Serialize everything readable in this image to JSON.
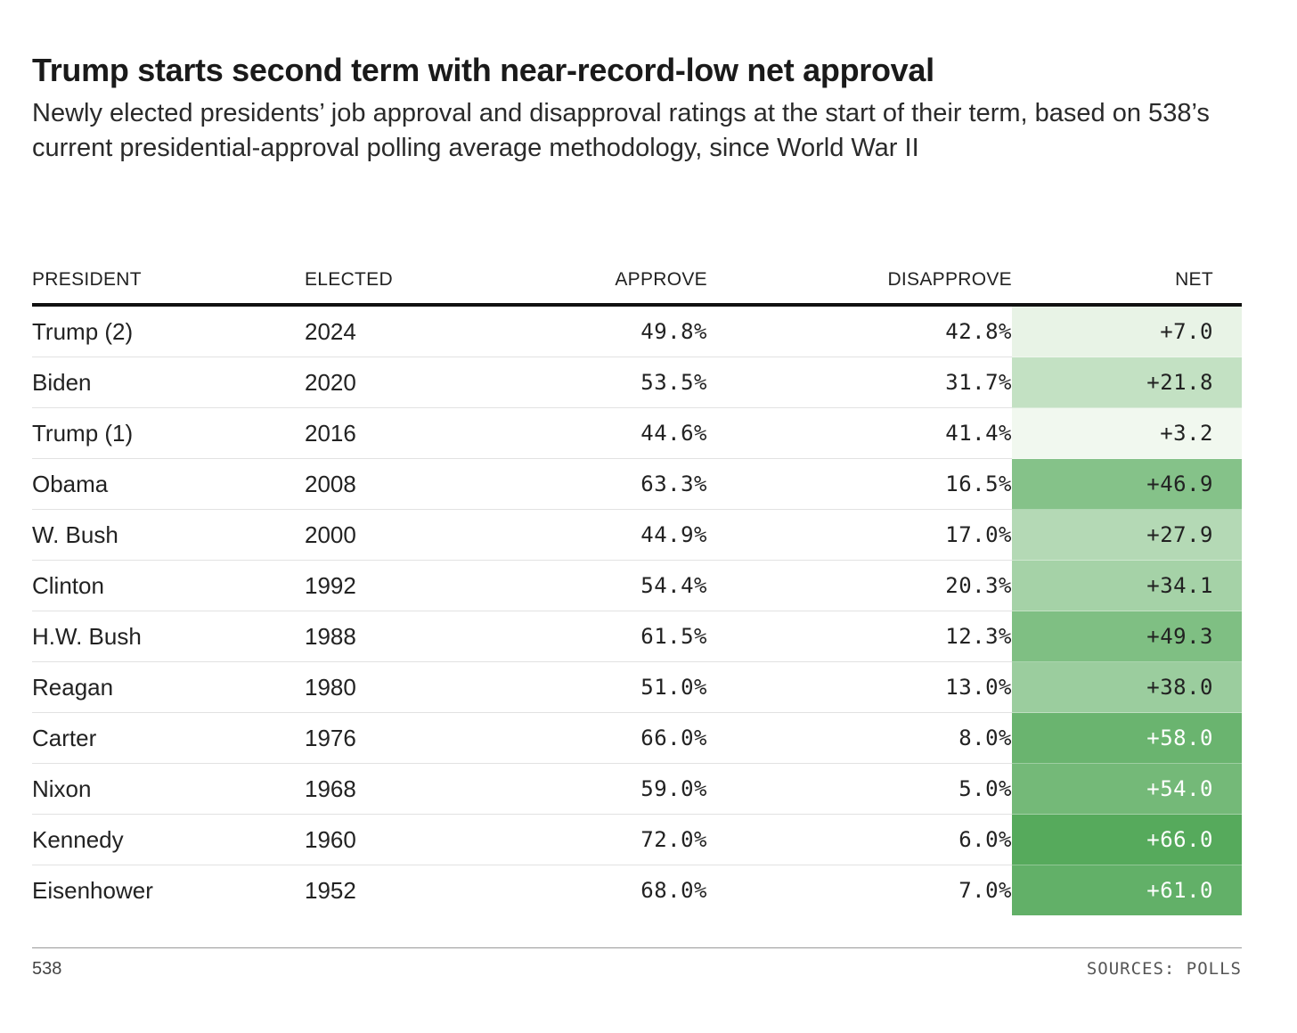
{
  "title": "Trump starts second term with near-record-low net approval",
  "subtitle": "Newly elected presidents’ job approval and disapproval ratings at the start of their term, based on 538’s current presidential-approval polling average methodology, since World War II",
  "chart_data": {
    "type": "table",
    "columns": [
      "PRESIDENT",
      "ELECTED",
      "APPROVE",
      "DISAPPROVE",
      "NET"
    ],
    "rows": [
      {
        "president": "Trump (2)",
        "elected": "2024",
        "approve": "49.8%",
        "disapprove": "42.8%",
        "net": "+7.0",
        "net_value": 7.0
      },
      {
        "president": "Biden",
        "elected": "2020",
        "approve": "53.5%",
        "disapprove": "31.7%",
        "net": "+21.8",
        "net_value": 21.8
      },
      {
        "president": "Trump (1)",
        "elected": "2016",
        "approve": "44.6%",
        "disapprove": "41.4%",
        "net": "+3.2",
        "net_value": 3.2
      },
      {
        "president": "Obama",
        "elected": "2008",
        "approve": "63.3%",
        "disapprove": "16.5%",
        "net": "+46.9",
        "net_value": 46.9
      },
      {
        "president": "W. Bush",
        "elected": "2000",
        "approve": "44.9%",
        "disapprove": "17.0%",
        "net": "+27.9",
        "net_value": 27.9
      },
      {
        "president": "Clinton",
        "elected": "1992",
        "approve": "54.4%",
        "disapprove": "20.3%",
        "net": "+34.1",
        "net_value": 34.1
      },
      {
        "president": "H.W. Bush",
        "elected": "1988",
        "approve": "61.5%",
        "disapprove": "12.3%",
        "net": "+49.3",
        "net_value": 49.3
      },
      {
        "president": "Reagan",
        "elected": "1980",
        "approve": "51.0%",
        "disapprove": "13.0%",
        "net": "+38.0",
        "net_value": 38.0
      },
      {
        "president": "Carter",
        "elected": "1976",
        "approve": "66.0%",
        "disapprove": "8.0%",
        "net": "+58.0",
        "net_value": 58.0
      },
      {
        "president": "Nixon",
        "elected": "1968",
        "approve": "59.0%",
        "disapprove": "5.0%",
        "net": "+54.0",
        "net_value": 54.0
      },
      {
        "president": "Kennedy",
        "elected": "1960",
        "approve": "72.0%",
        "disapprove": "6.0%",
        "net": "+66.0",
        "net_value": 66.0
      },
      {
        "president": "Eisenhower",
        "elected": "1952",
        "approve": "68.0%",
        "disapprove": "7.0%",
        "net": "+61.0",
        "net_value": 61.0
      }
    ]
  },
  "colors": {
    "net_scale_low": "#f1f8ef",
    "net_scale_high": "#56aa5c",
    "text_dark": "#222222",
    "text_light": "#ffffff"
  },
  "footer": {
    "credit": "538",
    "sources": "SOURCES: POLLS"
  }
}
